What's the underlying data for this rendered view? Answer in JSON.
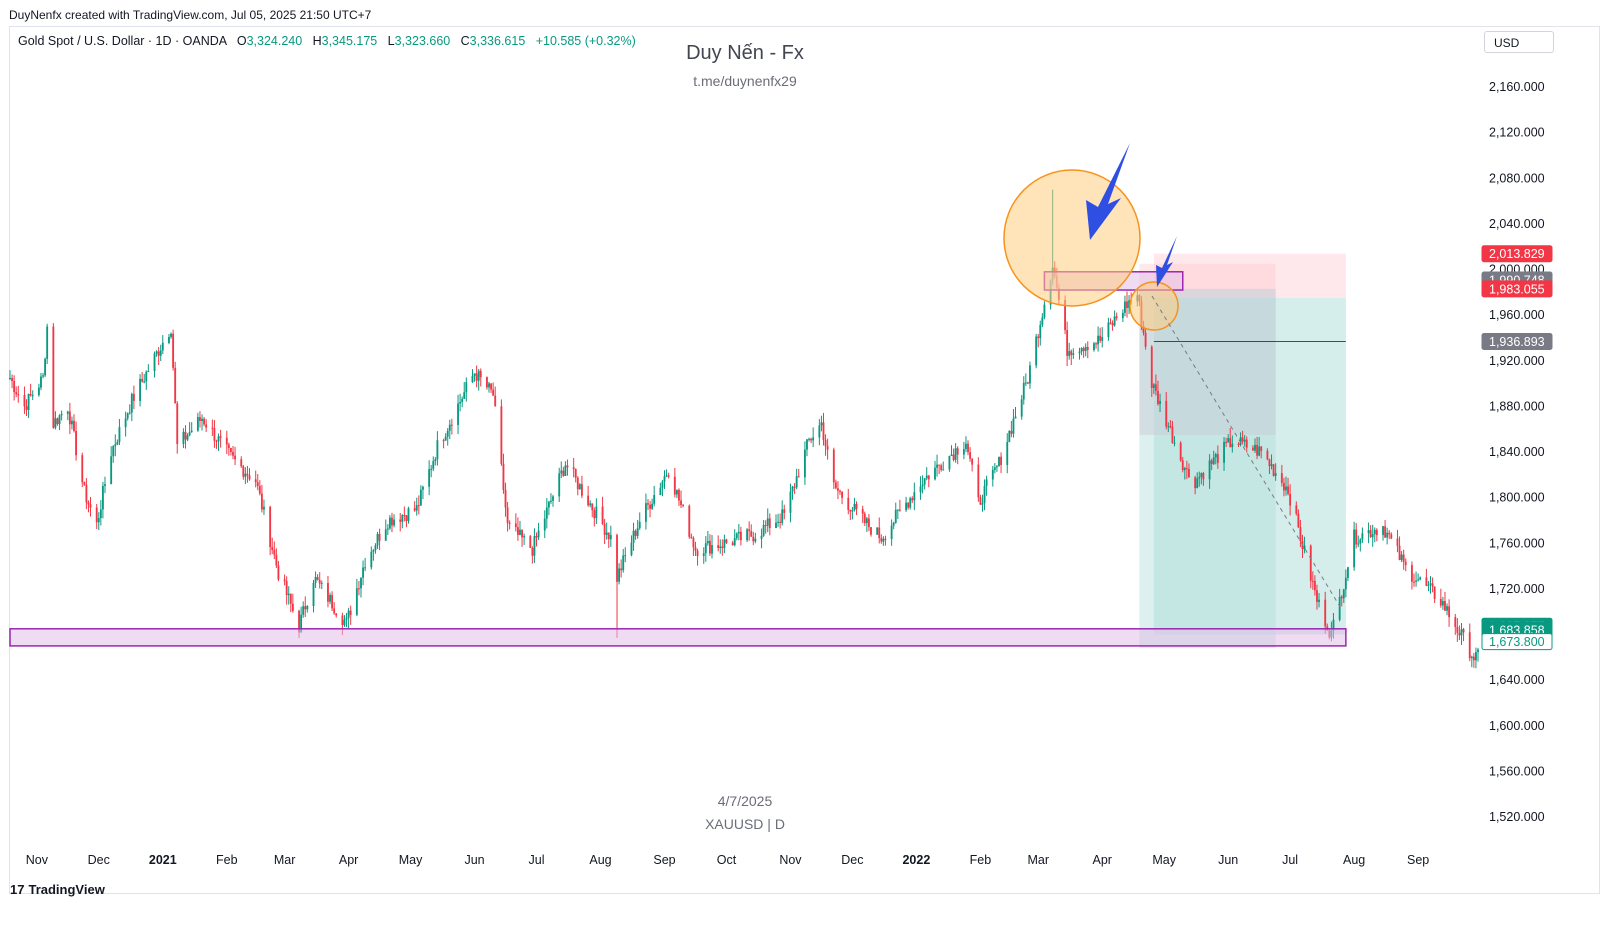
{
  "header": {
    "credit": "DuyNenfx created with TradingView.com, Jul 05, 2025 21:50 UTC+7"
  },
  "symbol": {
    "name": "Gold Spot / U.S. Dollar · 1D · OANDA",
    "o_label": "O",
    "o": "3,324.240",
    "h_label": "H",
    "h": "3,345.175",
    "l_label": "L",
    "l": "3,323.660",
    "c_label": "C",
    "c": "3,336.615",
    "change": "+10.585 (+0.32%)"
  },
  "currency": "USD",
  "watermark": {
    "title": "Duy Nến - Fx",
    "link": "t.me/duynenfx29",
    "date": "4/7/2025",
    "symbol": "XAUUSD | D"
  },
  "footer": {
    "brand": "TradingView",
    "logo_mark": "17"
  },
  "colors": {
    "up": "#089981",
    "down": "#f23645",
    "zone_border": "#9c27b0",
    "zone_fill": "#e1bee7",
    "circle_border": "#f7931a",
    "circle_fill": "#ffcc80",
    "arrow": "#2f4fe3",
    "tp_fill": "#b2dfdb",
    "sl_fill": "#ffcdd2",
    "grey_tag": "#787b86"
  },
  "chart_data": {
    "type": "candlestick",
    "title": "Gold Spot / U.S. Dollar",
    "interval": "1D",
    "ylim": [
      1500,
      2200
    ],
    "y_ticks": [
      1520,
      1560,
      1600,
      1640,
      1680,
      1720,
      1760,
      1800,
      1840,
      1880,
      1920,
      1960,
      2000,
      2040,
      2080,
      2120,
      2160
    ],
    "y_tick_labels": [
      "1,520.000",
      "1,560.000",
      "1,600.000",
      "1,640.000",
      "1,680.000",
      "1,720.000",
      "1,760.000",
      "1,800.000",
      "1,840.000",
      "1,880.000",
      "1,920.000",
      "1,960.000",
      "2,000.000",
      "2,040.000",
      "2,080.000",
      "2,120.000",
      "2,160.000"
    ],
    "x_start": "2020-10-19",
    "x_end": "2022-09-30",
    "x_ticks": [
      {
        "label": "Nov",
        "date": "2020-11-01",
        "bold": false
      },
      {
        "label": "Dec",
        "date": "2020-12-01",
        "bold": false
      },
      {
        "label": "2021",
        "date": "2021-01-01",
        "bold": true
      },
      {
        "label": "Feb",
        "date": "2021-02-01",
        "bold": false
      },
      {
        "label": "Mar",
        "date": "2021-03-01",
        "bold": false
      },
      {
        "label": "Apr",
        "date": "2021-04-01",
        "bold": false
      },
      {
        "label": "May",
        "date": "2021-05-01",
        "bold": false
      },
      {
        "label": "Jun",
        "date": "2021-06-01",
        "bold": false
      },
      {
        "label": "Jul",
        "date": "2021-07-01",
        "bold": false
      },
      {
        "label": "Aug",
        "date": "2021-08-01",
        "bold": false
      },
      {
        "label": "Sep",
        "date": "2021-09-01",
        "bold": false
      },
      {
        "label": "Oct",
        "date": "2021-10-01",
        "bold": false
      },
      {
        "label": "Nov",
        "date": "2021-11-01",
        "bold": false
      },
      {
        "label": "Dec",
        "date": "2021-12-01",
        "bold": false
      },
      {
        "label": "2022",
        "date": "2022-01-01",
        "bold": true
      },
      {
        "label": "Feb",
        "date": "2022-02-01",
        "bold": false
      },
      {
        "label": "Mar",
        "date": "2022-03-01",
        "bold": false
      },
      {
        "label": "Apr",
        "date": "2022-04-01",
        "bold": false
      },
      {
        "label": "May",
        "date": "2022-05-01",
        "bold": false
      },
      {
        "label": "Jun",
        "date": "2022-06-01",
        "bold": false
      },
      {
        "label": "Jul",
        "date": "2022-07-01",
        "bold": false
      },
      {
        "label": "Aug",
        "date": "2022-08-01",
        "bold": false
      },
      {
        "label": "Sep",
        "date": "2022-09-01",
        "bold": false
      }
    ],
    "close_path": [
      [
        "2020-10-19",
        1905
      ],
      [
        "2020-10-26",
        1880
      ],
      [
        "2020-11-04",
        1905
      ],
      [
        "2020-11-06",
        1950
      ],
      [
        "2020-11-09",
        1865
      ],
      [
        "2020-11-16",
        1880
      ],
      [
        "2020-11-24",
        1805
      ],
      [
        "2020-11-30",
        1776
      ],
      [
        "2020-12-07",
        1840
      ],
      [
        "2020-12-17",
        1885
      ],
      [
        "2021-01-05",
        1950
      ],
      [
        "2021-01-08",
        1845
      ],
      [
        "2021-01-20",
        1870
      ],
      [
        "2021-02-03",
        1835
      ],
      [
        "2021-02-15",
        1815
      ],
      [
        "2021-02-26",
        1734
      ],
      [
        "2021-03-08",
        1687
      ],
      [
        "2021-03-15",
        1730
      ],
      [
        "2021-03-31",
        1690
      ],
      [
        "2021-04-09",
        1745
      ],
      [
        "2021-04-20",
        1780
      ],
      [
        "2021-05-04",
        1790
      ],
      [
        "2021-05-14",
        1845
      ],
      [
        "2021-06-01",
        1910
      ],
      [
        "2021-06-10",
        1890
      ],
      [
        "2021-06-17",
        1775
      ],
      [
        "2021-06-29",
        1755
      ],
      [
        "2021-07-15",
        1830
      ],
      [
        "2021-08-06",
        1765
      ],
      [
        "2021-08-09",
        1730
      ],
      [
        "2021-08-20",
        1780
      ],
      [
        "2021-09-03",
        1825
      ],
      [
        "2021-09-16",
        1755
      ],
      [
        "2021-09-30",
        1760
      ],
      [
        "2021-10-15",
        1768
      ],
      [
        "2021-10-29",
        1785
      ],
      [
        "2021-11-10",
        1850
      ],
      [
        "2021-11-16",
        1865
      ],
      [
        "2021-11-22",
        1810
      ],
      [
        "2021-12-06",
        1780
      ],
      [
        "2021-12-15",
        1765
      ],
      [
        "2022-01-04",
        1815
      ],
      [
        "2022-01-25",
        1850
      ],
      [
        "2022-01-31",
        1795
      ],
      [
        "2022-02-10",
        1830
      ],
      [
        "2022-02-24",
        1905
      ],
      [
        "2022-03-08",
        2005
      ],
      [
        "2022-03-15",
        1930
      ],
      [
        "2022-03-31",
        1938
      ],
      [
        "2022-04-12",
        1968
      ],
      [
        "2022-04-18",
        1978
      ],
      [
        "2022-04-25",
        1900
      ],
      [
        "2022-05-12",
        1822
      ],
      [
        "2022-05-16",
        1815
      ],
      [
        "2022-06-03",
        1850
      ],
      [
        "2022-06-17",
        1840
      ],
      [
        "2022-06-30",
        1807
      ],
      [
        "2022-07-14",
        1710
      ],
      [
        "2022-07-21",
        1680
      ],
      [
        "2022-08-01",
        1765
      ],
      [
        "2022-08-15",
        1775
      ],
      [
        "2022-08-26",
        1738
      ],
      [
        "2022-09-12",
        1710
      ],
      [
        "2022-09-28",
        1660
      ]
    ],
    "price_labels": [
      {
        "value": "2,013.829",
        "price": 2013.829,
        "color": "#f23645",
        "style": "filled"
      },
      {
        "value": "1,990.748",
        "price": 1990.748,
        "color": "#787b86",
        "style": "filled"
      },
      {
        "value": "1,983.055",
        "price": 1983.055,
        "color": "#f23645",
        "style": "filled"
      },
      {
        "value": "1,936.893",
        "price": 1936.893,
        "color": "#787b86",
        "style": "filled"
      },
      {
        "value": "1,687.277",
        "price": 1687.277,
        "color": "#089981",
        "style": "filled"
      },
      {
        "value": "1,683.858",
        "price": 1683.858,
        "color": "#089981",
        "style": "filled"
      },
      {
        "value": "1,673.800",
        "price": 1673.8,
        "color": "#089981",
        "style": "outline"
      }
    ],
    "zones": [
      {
        "name": "demand-zone",
        "from": "2020-10-19",
        "to": "2022-07-28",
        "top": 1685,
        "bottom": 1670
      },
      {
        "name": "supply-zone",
        "from": "2022-03-04",
        "to": "2022-05-10",
        "top": 1998,
        "bottom": 1982
      }
    ],
    "positions": [
      {
        "name": "short-position-1",
        "from": "2022-04-19",
        "to": "2022-06-24",
        "entry": 1983,
        "stop": 2005,
        "target": 1668
      },
      {
        "name": "short-position-2",
        "from": "2022-04-26",
        "to": "2022-07-28",
        "entry": 1975,
        "stop": 2013.8,
        "target": 1680
      }
    ]
  }
}
